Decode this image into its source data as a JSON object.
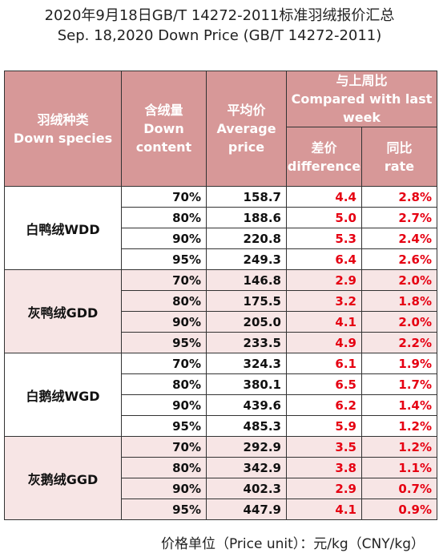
{
  "title_cn": "2020年9月18日GB/T 14272-2011标准羽绒报价汇总",
  "title_en": "Sep. 18,2020 Down Price (GB/T 14272-2011)",
  "headers": {
    "species": [
      "羽绒种类",
      "Down species"
    ],
    "content": [
      "含绒量",
      "Down",
      "content"
    ],
    "avg": [
      "平均价",
      "Average",
      "price"
    ],
    "compared": [
      "与上周比",
      "Compared with last",
      "week"
    ],
    "diff": [
      "差价",
      "difference"
    ],
    "rate": [
      "同比",
      "rate"
    ]
  },
  "groups": [
    {
      "name": "白鸭绒WDD",
      "rows": [
        {
          "pct": "70%",
          "avg": "158.7",
          "diff": "4.4",
          "rate": "2.8%"
        },
        {
          "pct": "80%",
          "avg": "188.6",
          "diff": "5.0",
          "rate": "2.7%"
        },
        {
          "pct": "90%",
          "avg": "220.8",
          "diff": "5.3",
          "rate": "2.4%"
        },
        {
          "pct": "95%",
          "avg": "249.3",
          "diff": "6.4",
          "rate": "2.6%"
        }
      ]
    },
    {
      "name": "灰鸭绒GDD",
      "rows": [
        {
          "pct": "70%",
          "avg": "146.8",
          "diff": "2.9",
          "rate": "2.0%"
        },
        {
          "pct": "80%",
          "avg": "175.5",
          "diff": "3.2",
          "rate": "1.8%"
        },
        {
          "pct": "90%",
          "avg": "205.0",
          "diff": "4.1",
          "rate": "2.0%"
        },
        {
          "pct": "95%",
          "avg": "233.5",
          "diff": "4.9",
          "rate": "2.2%"
        }
      ]
    },
    {
      "name": "白鹅绒WGD",
      "rows": [
        {
          "pct": "70%",
          "avg": "324.3",
          "diff": "6.1",
          "rate": "1.9%"
        },
        {
          "pct": "80%",
          "avg": "380.1",
          "diff": "6.5",
          "rate": "1.7%"
        },
        {
          "pct": "90%",
          "avg": "439.6",
          "diff": "6.2",
          "rate": "1.4%"
        },
        {
          "pct": "95%",
          "avg": "485.3",
          "diff": "5.9",
          "rate": "1.2%"
        }
      ]
    },
    {
      "name": "灰鹅绒GGD",
      "rows": [
        {
          "pct": "70%",
          "avg": "292.9",
          "diff": "3.5",
          "rate": "1.2%"
        },
        {
          "pct": "80%",
          "avg": "342.9",
          "diff": "3.8",
          "rate": "1.1%"
        },
        {
          "pct": "90%",
          "avg": "402.3",
          "diff": "2.9",
          "rate": "0.7%"
        },
        {
          "pct": "95%",
          "avg": "447.9",
          "diff": "4.1",
          "rate": "0.9%"
        }
      ]
    }
  ],
  "footer": "价格单位（Price unit）：元/kg（CNY/kg）",
  "colors": {
    "header_bg": "#d79898",
    "alt_group_bg": "#f7e5e5",
    "change_text": "#e60012"
  }
}
